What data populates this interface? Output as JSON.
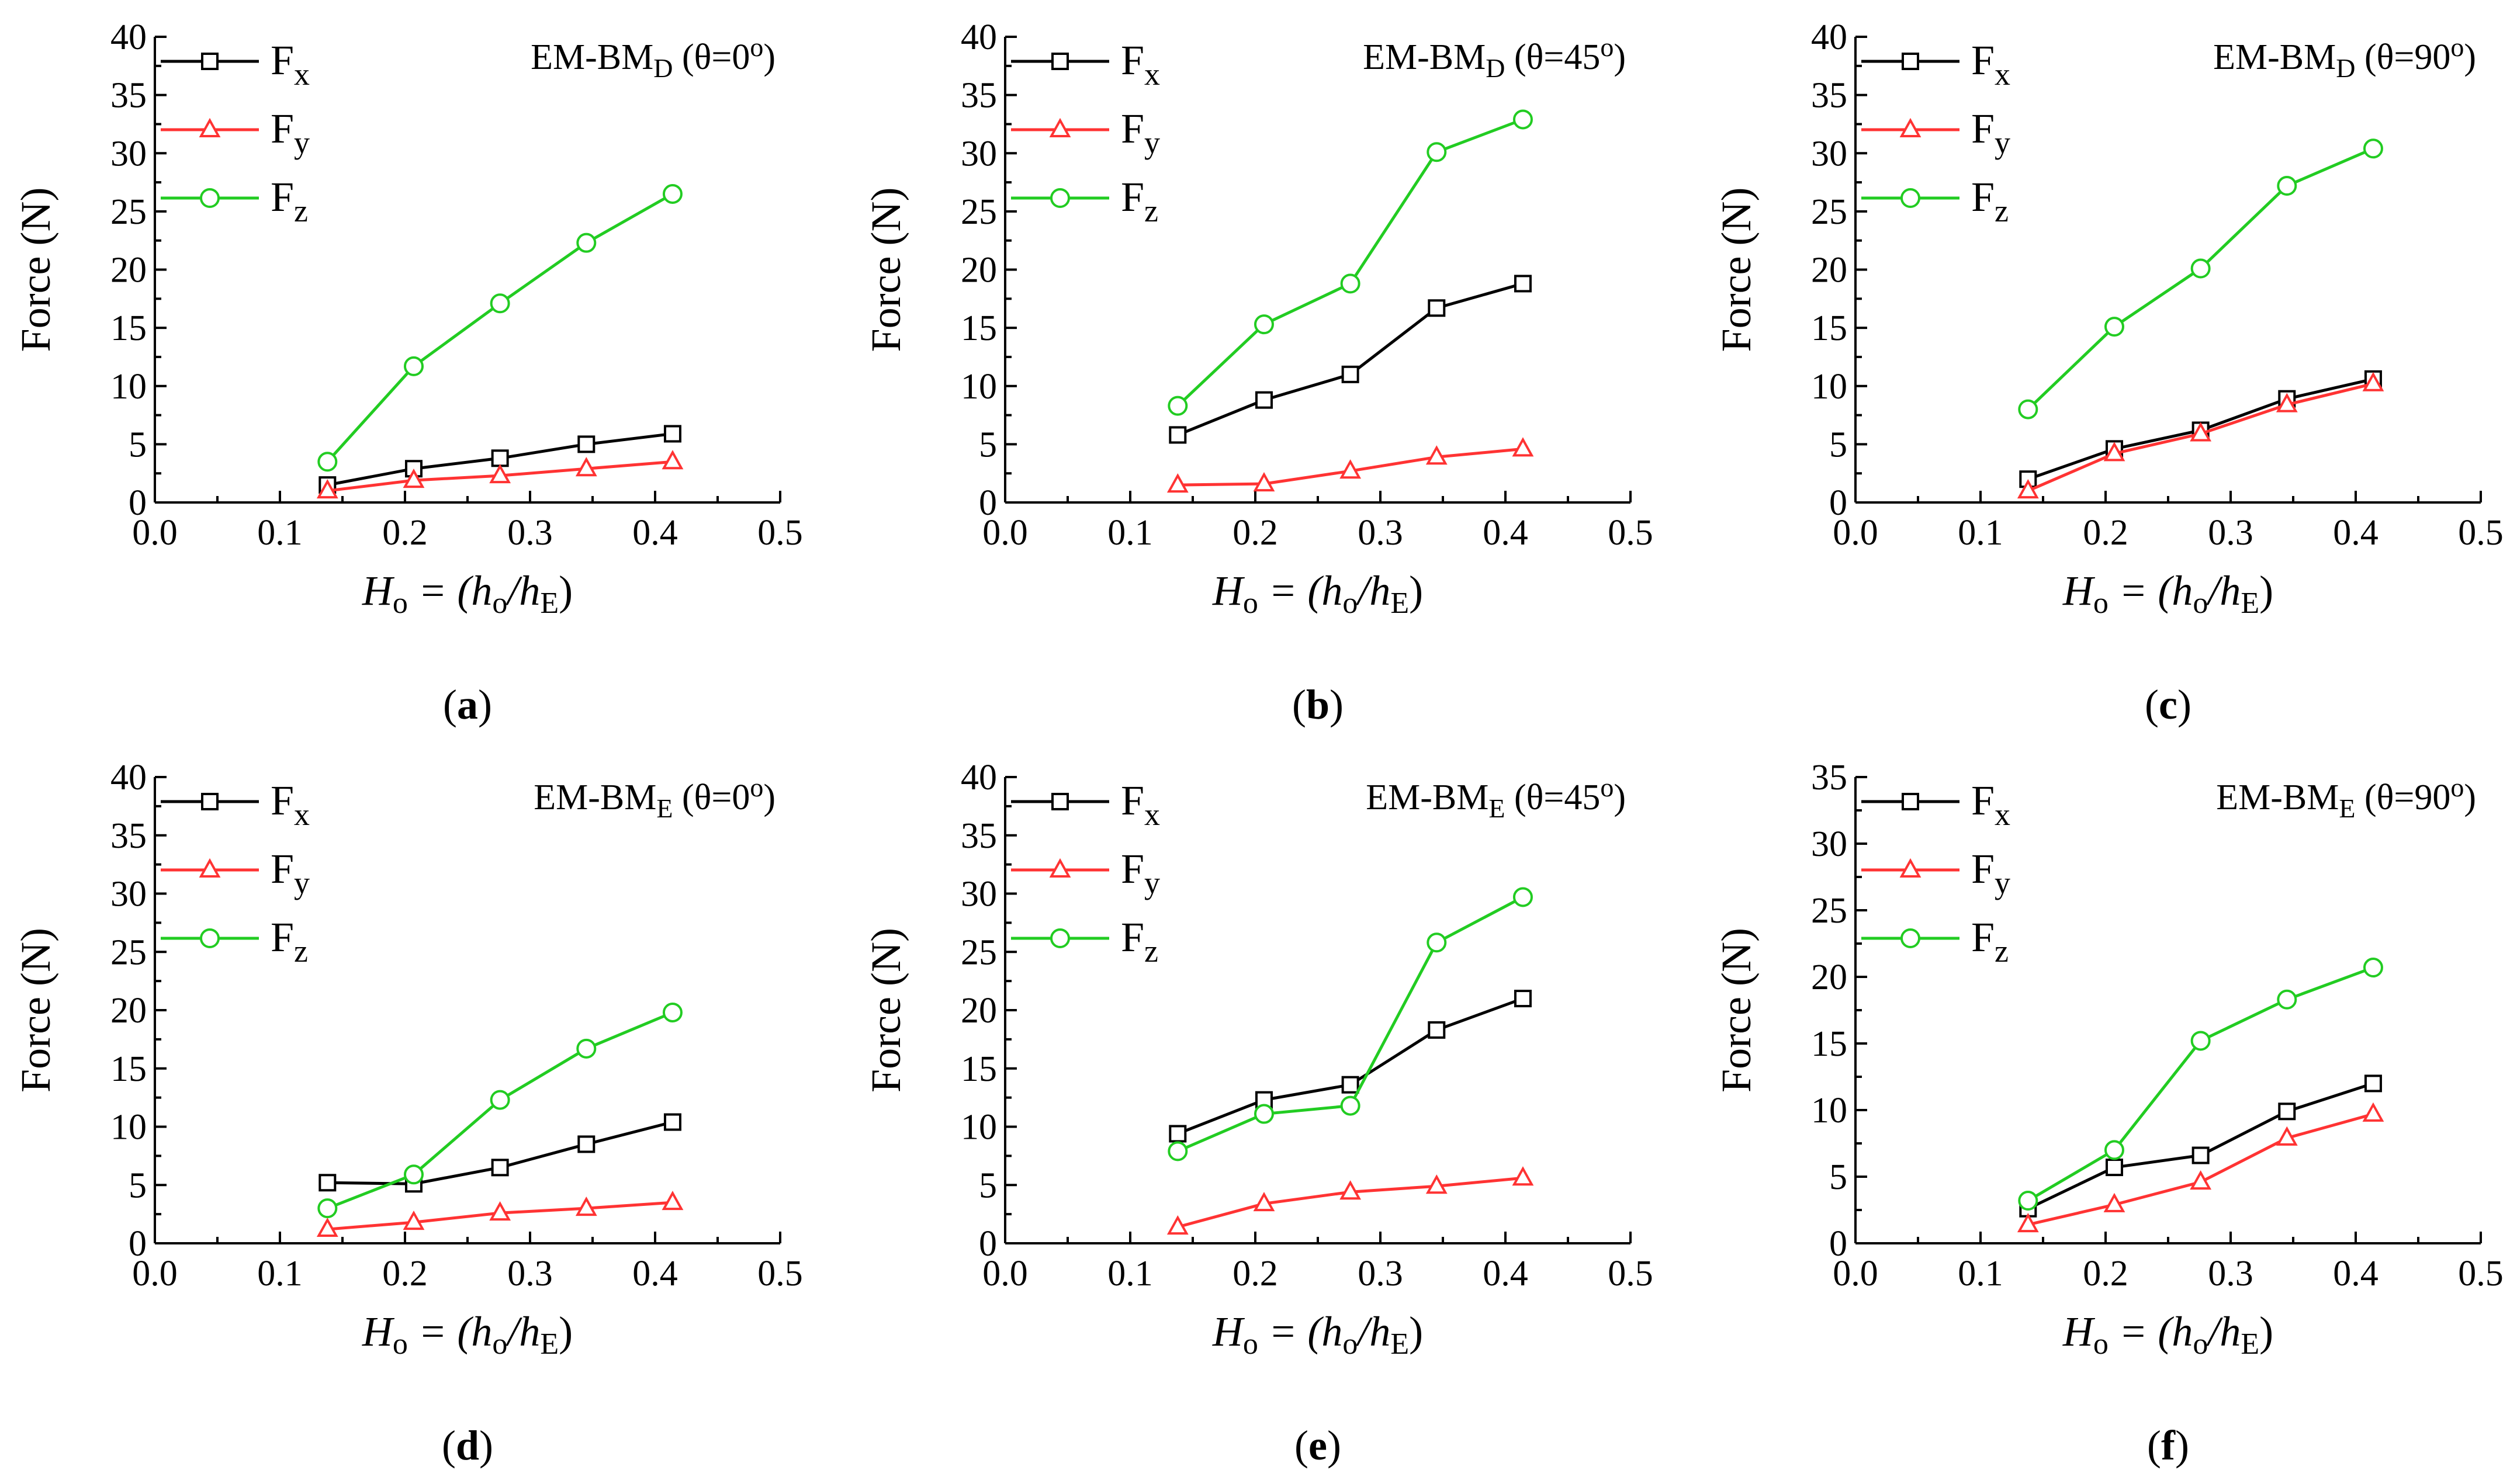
{
  "chart_data": [
    {
      "type": "line",
      "panel": "(a)",
      "panel_letter": "a",
      "title": "EM-BM",
      "title_sub": "D",
      "title_theta": "(θ=0",
      "title_sup": "o",
      "title_close": ")",
      "xlabel": "H",
      "xlabel_sub": "o",
      "xlabel_mid": " = (h",
      "xlabel_sub2": "o",
      "xlabel_slash": "/h",
      "xlabel_sub3": "E",
      "xlabel_close": ")",
      "ylabel": "Force (N)",
      "xlim": [
        0.0,
        0.5
      ],
      "ylim": [
        0,
        40
      ],
      "xticks": [
        "0.0",
        "0.1",
        "0.2",
        "0.3",
        "0.4",
        "0.5"
      ],
      "yticks": [
        "0",
        "5",
        "10",
        "15",
        "20",
        "25",
        "30",
        "35",
        "40"
      ],
      "x": [
        0.138,
        0.207,
        0.276,
        0.345,
        0.414
      ],
      "series": [
        {
          "name": "F",
          "sub": "x",
          "color": "#000000",
          "marker": "square",
          "values": [
            1.5,
            2.9,
            3.8,
            5.0,
            5.9
          ]
        },
        {
          "name": "F",
          "sub": "y",
          "color": "#ff3333",
          "marker": "triangle",
          "values": [
            1.0,
            1.9,
            2.3,
            2.9,
            3.5
          ]
        },
        {
          "name": "F",
          "sub": "z",
          "color": "#22cc22",
          "marker": "circle",
          "values": [
            3.5,
            11.7,
            17.1,
            22.3,
            26.5
          ]
        }
      ]
    },
    {
      "type": "line",
      "panel": "(b)",
      "panel_letter": "b",
      "title": "EM-BM",
      "title_sub": "D",
      "title_theta": "(θ=45",
      "title_sup": "o",
      "title_close": ")",
      "xlabel": "H",
      "xlabel_sub": "o",
      "xlabel_mid": " = (h",
      "xlabel_sub2": "o",
      "xlabel_slash": "/h",
      "xlabel_sub3": "E",
      "xlabel_close": ")",
      "ylabel": "Force (N)",
      "xlim": [
        0.0,
        0.5
      ],
      "ylim": [
        0,
        40
      ],
      "xticks": [
        "0.0",
        "0.1",
        "0.2",
        "0.3",
        "0.4",
        "0.5"
      ],
      "yticks": [
        "0",
        "5",
        "10",
        "15",
        "20",
        "25",
        "30",
        "35",
        "40"
      ],
      "x": [
        0.138,
        0.207,
        0.276,
        0.345,
        0.414
      ],
      "series": [
        {
          "name": "F",
          "sub": "x",
          "color": "#000000",
          "marker": "square",
          "values": [
            5.8,
            8.8,
            11.0,
            16.7,
            18.8
          ]
        },
        {
          "name": "F",
          "sub": "y",
          "color": "#ff3333",
          "marker": "triangle",
          "values": [
            1.5,
            1.6,
            2.7,
            3.9,
            4.6
          ]
        },
        {
          "name": "F",
          "sub": "z",
          "color": "#22cc22",
          "marker": "circle",
          "values": [
            8.3,
            15.3,
            18.8,
            30.1,
            32.9
          ]
        }
      ]
    },
    {
      "type": "line",
      "panel": "(c)",
      "panel_letter": "c",
      "title": "EM-BM",
      "title_sub": "D",
      "title_theta": "(θ=90",
      "title_sup": "o",
      "title_close": ")",
      "xlabel": "H",
      "xlabel_sub": "o",
      "xlabel_mid": " = (h",
      "xlabel_sub2": "o",
      "xlabel_slash": "/h",
      "xlabel_sub3": "E",
      "xlabel_close": ")",
      "ylabel": "Force (N)",
      "xlim": [
        0.0,
        0.5
      ],
      "ylim": [
        0,
        40
      ],
      "xticks": [
        "0.0",
        "0.1",
        "0.2",
        "0.3",
        "0.4",
        "0.5"
      ],
      "yticks": [
        "0",
        "5",
        "10",
        "15",
        "20",
        "25",
        "30",
        "35",
        "40"
      ],
      "x": [
        0.138,
        0.207,
        0.276,
        0.345,
        0.414
      ],
      "series": [
        {
          "name": "F",
          "sub": "x",
          "color": "#000000",
          "marker": "square",
          "values": [
            2.0,
            4.6,
            6.2,
            8.9,
            10.6
          ]
        },
        {
          "name": "F",
          "sub": "y",
          "color": "#ff3333",
          "marker": "triangle",
          "values": [
            1.0,
            4.2,
            5.9,
            8.4,
            10.2
          ]
        },
        {
          "name": "F",
          "sub": "z",
          "color": "#22cc22",
          "marker": "circle",
          "values": [
            8.0,
            15.1,
            20.1,
            27.2,
            30.4
          ]
        }
      ]
    },
    {
      "type": "line",
      "panel": "(d)",
      "panel_letter": "d",
      "title": "EM-BM",
      "title_sub": "E",
      "title_theta": "(θ=0",
      "title_sup": "o",
      "title_close": ")",
      "xlabel": "H",
      "xlabel_sub": "o",
      "xlabel_mid": " = (h",
      "xlabel_sub2": "o",
      "xlabel_slash": "/h",
      "xlabel_sub3": "E",
      "xlabel_close": ")",
      "ylabel": "Force (N)",
      "xlim": [
        0.0,
        0.5
      ],
      "ylim": [
        0,
        40
      ],
      "xticks": [
        "0.0",
        "0.1",
        "0.2",
        "0.3",
        "0.4",
        "0.5"
      ],
      "yticks": [
        "0",
        "5",
        "10",
        "15",
        "20",
        "25",
        "30",
        "35",
        "40"
      ],
      "x": [
        0.138,
        0.207,
        0.276,
        0.345,
        0.414
      ],
      "series": [
        {
          "name": "F",
          "sub": "x",
          "color": "#000000",
          "marker": "square",
          "values": [
            5.2,
            5.1,
            6.5,
            8.5,
            10.4
          ]
        },
        {
          "name": "F",
          "sub": "y",
          "color": "#ff3333",
          "marker": "triangle",
          "values": [
            1.2,
            1.8,
            2.6,
            3.0,
            3.5
          ]
        },
        {
          "name": "F",
          "sub": "z",
          "color": "#22cc22",
          "marker": "circle",
          "values": [
            3.0,
            5.9,
            12.3,
            16.7,
            19.8
          ]
        }
      ]
    },
    {
      "type": "line",
      "panel": "(e)",
      "panel_letter": "e",
      "title": "EM-BM",
      "title_sub": "E",
      "title_theta": "(θ=45",
      "title_sup": "o",
      "title_close": ")",
      "xlabel": "H",
      "xlabel_sub": "o",
      "xlabel_mid": " = (h",
      "xlabel_sub2": "o",
      "xlabel_slash": "/h",
      "xlabel_sub3": "E",
      "xlabel_close": ")",
      "ylabel": "Force (N)",
      "xlim": [
        0.0,
        0.5
      ],
      "ylim": [
        0,
        40
      ],
      "xticks": [
        "0.0",
        "0.1",
        "0.2",
        "0.3",
        "0.4",
        "0.5"
      ],
      "yticks": [
        "0",
        "5",
        "10",
        "15",
        "20",
        "25",
        "30",
        "35",
        "40"
      ],
      "x": [
        0.138,
        0.207,
        0.276,
        0.345,
        0.414
      ],
      "series": [
        {
          "name": "F",
          "sub": "x",
          "color": "#000000",
          "marker": "square",
          "values": [
            9.4,
            12.3,
            13.6,
            18.3,
            21.0
          ]
        },
        {
          "name": "F",
          "sub": "y",
          "color": "#ff3333",
          "marker": "triangle",
          "values": [
            1.4,
            3.4,
            4.4,
            4.9,
            5.6
          ]
        },
        {
          "name": "F",
          "sub": "z",
          "color": "#22cc22",
          "marker": "circle",
          "values": [
            7.9,
            11.1,
            11.8,
            25.8,
            29.7
          ]
        }
      ]
    },
    {
      "type": "line",
      "panel": "(f)",
      "panel_letter": "f",
      "title": "EM-BM",
      "title_sub": "E",
      "title_theta": "(θ=90",
      "title_sup": "o",
      "title_close": ")",
      "xlabel": "H",
      "xlabel_sub": "o",
      "xlabel_mid": " = (h",
      "xlabel_sub2": "o",
      "xlabel_slash": "/h",
      "xlabel_sub3": "E",
      "xlabel_close": ")",
      "ylabel": "Force (N)",
      "xlim": [
        0.0,
        0.5
      ],
      "ylim": [
        0,
        35
      ],
      "xticks": [
        "0.0",
        "0.1",
        "0.2",
        "0.3",
        "0.4",
        "0.5"
      ],
      "yticks": [
        "0",
        "5",
        "10",
        "15",
        "20",
        "25",
        "30",
        "35"
      ],
      "x": [
        0.138,
        0.207,
        0.276,
        0.345,
        0.414
      ],
      "series": [
        {
          "name": "F",
          "sub": "x",
          "color": "#000000",
          "marker": "square",
          "values": [
            2.6,
            5.7,
            6.6,
            9.9,
            12.0
          ]
        },
        {
          "name": "F",
          "sub": "y",
          "color": "#ff3333",
          "marker": "triangle",
          "values": [
            1.4,
            2.9,
            4.6,
            7.9,
            9.7
          ]
        },
        {
          "name": "F",
          "sub": "z",
          "color": "#22cc22",
          "marker": "circle",
          "values": [
            3.2,
            7.0,
            15.2,
            18.3,
            20.7
          ]
        }
      ]
    }
  ]
}
